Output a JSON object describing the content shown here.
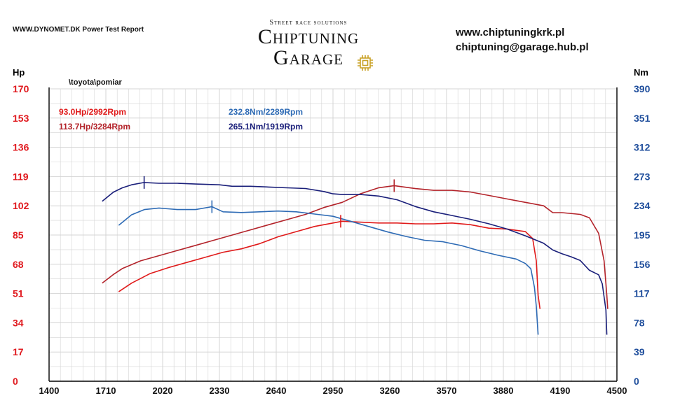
{
  "header": {
    "report": "WWW.DYNOMET.DK  Power Test Report",
    "brand_tagline": "Street race solutions",
    "brand_line1": "Chiptuning",
    "brand_line2": "Garage",
    "website": "www.chiptuningkrk.pl",
    "email": "chiptuning@garage.hub.pl"
  },
  "colors": {
    "power_axis": "#e0191e",
    "torque_axis": "#1f4e9c",
    "stock_power": "#e01a1a",
    "tuned_power": "#b3232a",
    "stock_torque": "#2e6bb5",
    "tuned_torque": "#1a1f7a",
    "grid": "#d4d4d4",
    "chip_gold": "#c9a227"
  },
  "chart_data": {
    "type": "line",
    "title": "\\toyota\\pomiar",
    "xlabel": "",
    "ylabel_left": "Hp",
    "ylabel_right": "Nm",
    "xlim": [
      1400,
      4500
    ],
    "ylim_left": [
      0,
      170
    ],
    "ylim_right": [
      0,
      390
    ],
    "grid": true,
    "x_ticks": [
      "1400",
      "1710",
      "2020",
      "2330",
      "2640",
      "2950",
      "3260",
      "3570",
      "3880",
      "4190",
      "4500"
    ],
    "y_ticks_left": [
      "0",
      "17",
      "34",
      "51",
      "68",
      "85",
      "102",
      "119",
      "136",
      "153",
      "170"
    ],
    "y_ticks_right": [
      "0",
      "39",
      "78",
      "117",
      "156",
      "195",
      "234",
      "273",
      "312",
      "351",
      "390"
    ],
    "annotations": [
      {
        "text": "93.0Hp/2992Rpm",
        "series": "stock_power"
      },
      {
        "text": "113.7Hp/3284Rpm",
        "series": "tuned_power"
      },
      {
        "text": "232.8Nm/2289Rpm",
        "series": "stock_torque"
      },
      {
        "text": "265.1Nm/1919Rpm",
        "series": "tuned_torque"
      }
    ],
    "series": [
      {
        "name": "stock_power",
        "axis": "left",
        "peak": [
          2992,
          93.0
        ],
        "points": [
          [
            1780,
            52
          ],
          [
            1850,
            57
          ],
          [
            1950,
            62.5
          ],
          [
            2050,
            66
          ],
          [
            2150,
            69
          ],
          [
            2250,
            72
          ],
          [
            2350,
            75
          ],
          [
            2450,
            77
          ],
          [
            2550,
            80
          ],
          [
            2650,
            84
          ],
          [
            2750,
            87
          ],
          [
            2850,
            90
          ],
          [
            2950,
            92
          ],
          [
            3000,
            93
          ],
          [
            3100,
            92.5
          ],
          [
            3200,
            92
          ],
          [
            3300,
            92
          ],
          [
            3400,
            91.5
          ],
          [
            3500,
            91.5
          ],
          [
            3600,
            92
          ],
          [
            3700,
            91
          ],
          [
            3800,
            89
          ],
          [
            3900,
            88.5
          ],
          [
            4000,
            87
          ],
          [
            4040,
            83
          ],
          [
            4060,
            70
          ],
          [
            4070,
            50
          ],
          [
            4080,
            42
          ]
        ]
      },
      {
        "name": "tuned_power",
        "axis": "left",
        "peak": [
          3284,
          113.7
        ],
        "points": [
          [
            1690,
            57
          ],
          [
            1750,
            62
          ],
          [
            1800,
            65.5
          ],
          [
            1900,
            70
          ],
          [
            2000,
            73
          ],
          [
            2100,
            76
          ],
          [
            2200,
            79
          ],
          [
            2300,
            82
          ],
          [
            2400,
            85
          ],
          [
            2500,
            88
          ],
          [
            2600,
            91
          ],
          [
            2700,
            94
          ],
          [
            2800,
            97
          ],
          [
            2900,
            101
          ],
          [
            3000,
            104
          ],
          [
            3100,
            109
          ],
          [
            3200,
            112.5
          ],
          [
            3284,
            113.7
          ],
          [
            3400,
            112
          ],
          [
            3500,
            111
          ],
          [
            3600,
            111
          ],
          [
            3700,
            110
          ],
          [
            3800,
            108
          ],
          [
            3900,
            106
          ],
          [
            4000,
            104
          ],
          [
            4100,
            102
          ],
          [
            4150,
            98
          ],
          [
            4200,
            98
          ],
          [
            4300,
            97
          ],
          [
            4350,
            95
          ],
          [
            4400,
            86
          ],
          [
            4430,
            70
          ],
          [
            4445,
            50
          ],
          [
            4450,
            42
          ]
        ]
      },
      {
        "name": "stock_torque",
        "axis": "right",
        "peak": [
          2289,
          232.8
        ],
        "points": [
          [
            1780,
            208
          ],
          [
            1850,
            222
          ],
          [
            1920,
            229
          ],
          [
            2000,
            231
          ],
          [
            2050,
            230
          ],
          [
            2100,
            229
          ],
          [
            2200,
            229
          ],
          [
            2289,
            232.8
          ],
          [
            2350,
            226
          ],
          [
            2450,
            225
          ],
          [
            2550,
            226
          ],
          [
            2650,
            227
          ],
          [
            2750,
            226
          ],
          [
            2850,
            223
          ],
          [
            2950,
            220
          ],
          [
            3050,
            213
          ],
          [
            3150,
            206
          ],
          [
            3250,
            199
          ],
          [
            3350,
            193
          ],
          [
            3450,
            188
          ],
          [
            3550,
            186
          ],
          [
            3650,
            181
          ],
          [
            3750,
            174
          ],
          [
            3850,
            168
          ],
          [
            3950,
            163
          ],
          [
            4000,
            157
          ],
          [
            4030,
            150
          ],
          [
            4050,
            125
          ],
          [
            4060,
            100
          ],
          [
            4070,
            62
          ]
        ]
      },
      {
        "name": "tuned_torque",
        "axis": "right",
        "peak": [
          1919,
          265.1
        ],
        "points": [
          [
            1690,
            240
          ],
          [
            1750,
            252
          ],
          [
            1800,
            258
          ],
          [
            1850,
            262
          ],
          [
            1919,
            265.1
          ],
          [
            2000,
            264
          ],
          [
            2100,
            264
          ],
          [
            2200,
            263
          ],
          [
            2330,
            262
          ],
          [
            2400,
            260
          ],
          [
            2500,
            260
          ],
          [
            2600,
            259
          ],
          [
            2700,
            258
          ],
          [
            2800,
            257
          ],
          [
            2900,
            253
          ],
          [
            2950,
            250
          ],
          [
            3000,
            249
          ],
          [
            3100,
            249
          ],
          [
            3200,
            247
          ],
          [
            3300,
            242
          ],
          [
            3400,
            233
          ],
          [
            3500,
            226
          ],
          [
            3600,
            221
          ],
          [
            3700,
            216
          ],
          [
            3800,
            210
          ],
          [
            3900,
            203
          ],
          [
            4000,
            194
          ],
          [
            4100,
            184
          ],
          [
            4150,
            175
          ],
          [
            4200,
            170
          ],
          [
            4250,
            166
          ],
          [
            4300,
            161
          ],
          [
            4350,
            148
          ],
          [
            4400,
            142
          ],
          [
            4420,
            130
          ],
          [
            4440,
            95
          ],
          [
            4445,
            62
          ]
        ]
      }
    ]
  }
}
